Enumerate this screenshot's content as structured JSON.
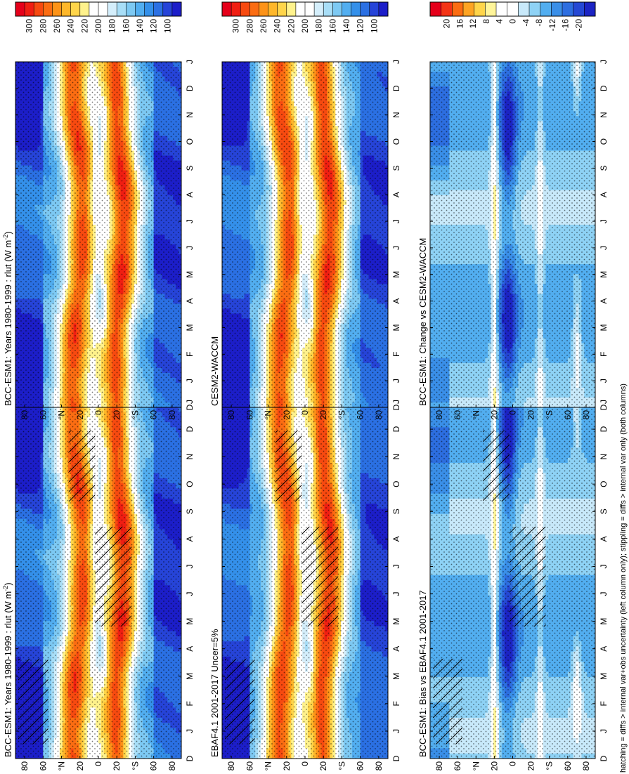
{
  "figure": {
    "footnote": "hatching = diffs > internal var+obs uncertainty (left column only); stippling = diffs > internal var only (both columns)"
  },
  "chart_data": [
    {
      "type": "heatmap",
      "id": "p1",
      "title": "BCC-ESM1: Years 1980-1999 : rlut (W m",
      "title_sup": "-2",
      "title_tail": ")",
      "variable": "rlut",
      "units": "W m-2",
      "months": [
        "D",
        "J",
        "F",
        "M",
        "A",
        "M",
        "J",
        "J",
        "A",
        "S",
        "O",
        "N",
        "D",
        "J"
      ],
      "lat_ticks": [
        "80",
        "60",
        "°N",
        "20",
        "0",
        "20",
        "°S",
        "60",
        "80"
      ],
      "colorbar": [
        "300",
        "280",
        "260",
        "240",
        "220",
        "200",
        "180",
        "160",
        "140",
        "120",
        "100"
      ],
      "range": [
        100,
        310
      ],
      "hatching": true,
      "stippling": true
    },
    {
      "type": "heatmap",
      "id": "p2",
      "title": "BCC-ESM1: Years 1980-1999 : rlut (W m",
      "title_sup": "-2",
      "title_tail": ")",
      "variable": "rlut",
      "units": "W m-2",
      "months": [
        "D",
        "J",
        "F",
        "M",
        "A",
        "M",
        "J",
        "J",
        "A",
        "S",
        "O",
        "N",
        "D",
        "J"
      ],
      "lat_ticks": [
        "80",
        "60",
        "°N",
        "20",
        "0",
        "20",
        "°S",
        "60",
        "80"
      ],
      "colorbar": [
        "300",
        "280",
        "260",
        "240",
        "220",
        "200",
        "180",
        "160",
        "140",
        "120",
        "100"
      ],
      "range": [
        100,
        310
      ],
      "hatching": false,
      "stippling": true
    },
    {
      "type": "heatmap",
      "id": "p3",
      "title": "EBAF4.1 2001-2017 Uncer=5%",
      "months": [
        "D",
        "J",
        "F",
        "M",
        "A",
        "M",
        "J",
        "J",
        "A",
        "S",
        "O",
        "N",
        "D",
        "J"
      ],
      "lat_ticks": [
        "80",
        "60",
        "°N",
        "20",
        "0",
        "20",
        "°S",
        "60",
        "80"
      ],
      "colorbar": [
        "300",
        "280",
        "260",
        "240",
        "220",
        "200",
        "180",
        "160",
        "140",
        "120",
        "100"
      ],
      "range": [
        100,
        310
      ],
      "hatching": true,
      "stippling": true
    },
    {
      "type": "heatmap",
      "id": "p4",
      "title": "CESM2-WACCM",
      "months": [
        "D",
        "J",
        "F",
        "M",
        "A",
        "M",
        "J",
        "J",
        "A",
        "S",
        "O",
        "N",
        "D",
        "J"
      ],
      "lat_ticks": [
        "80",
        "60",
        "°N",
        "20",
        "0",
        "20",
        "°S",
        "60",
        "80"
      ],
      "colorbar": [
        "300",
        "280",
        "260",
        "240",
        "220",
        "200",
        "180",
        "160",
        "140",
        "120",
        "100"
      ],
      "range": [
        100,
        310
      ],
      "hatching": false,
      "stippling": true
    },
    {
      "type": "heatmap",
      "id": "p5",
      "title": "BCC-ESM1: Bias vs EBAF4.1 2001-2017",
      "months": [
        "D",
        "J",
        "F",
        "M",
        "A",
        "M",
        "J",
        "J",
        "A",
        "S",
        "O",
        "N",
        "D",
        "J"
      ],
      "lat_ticks": [
        "80",
        "60",
        "°N",
        "20",
        "0",
        "20",
        "°S",
        "60",
        "80"
      ],
      "colorbar": [
        "20",
        "16",
        "12",
        "8",
        "4",
        "0",
        "-4",
        "-8",
        "-12",
        "-16",
        "-20"
      ],
      "range": [
        -22,
        22
      ],
      "hatching": true,
      "stippling": true
    },
    {
      "type": "heatmap",
      "id": "p6",
      "title": "BCC-ESM1: Change vs CESM2-WACCM",
      "months": [
        "D",
        "J",
        "F",
        "M",
        "A",
        "M",
        "J",
        "J",
        "A",
        "S",
        "O",
        "N",
        "D",
        "J"
      ],
      "lat_ticks": [
        "80",
        "60",
        "°N",
        "20",
        "0",
        "20",
        "°S",
        "60",
        "80"
      ],
      "colorbar": [
        "20",
        "16",
        "12",
        "8",
        "4",
        "0",
        "-4",
        "-8",
        "-12",
        "-16",
        "-20"
      ],
      "range": [
        -22,
        22
      ],
      "hatching": false,
      "stippling": true
    }
  ]
}
